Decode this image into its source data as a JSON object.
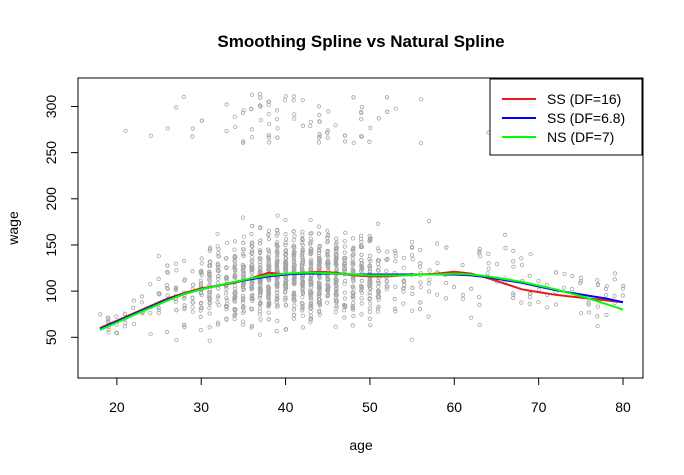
{
  "chart_data": {
    "type": "scatter",
    "title": "Smoothing Spline vs Natural Spline",
    "xlabel": "age",
    "ylabel": "wage",
    "xlim": [
      18,
      80
    ],
    "ylim": [
      20,
      320
    ],
    "x_ticks": [
      20,
      30,
      40,
      50,
      60,
      70,
      80
    ],
    "y_ticks": [
      50,
      100,
      150,
      200,
      250,
      300
    ],
    "grid": false,
    "legend_position": "top-right",
    "point_color": "#a6a6a6",
    "series": [
      {
        "name": "SS (DF=16)",
        "color": "#e41a1c",
        "x": [
          18,
          20,
          22,
          24,
          26,
          28,
          30,
          32,
          34,
          36,
          38,
          40,
          42,
          44,
          46,
          48,
          50,
          52,
          54,
          56,
          58,
          60,
          62,
          64,
          66,
          68,
          70,
          72,
          74,
          76,
          78,
          80
        ],
        "y": [
          60,
          68,
          76,
          84,
          92,
          98,
          103,
          106,
          109,
          114,
          120,
          118,
          120,
          121,
          120,
          117,
          116,
          116,
          117,
          118,
          119,
          121,
          119,
          114,
          108,
          102,
          99,
          96,
          94,
          92,
          90,
          88
        ]
      },
      {
        "name": "SS (DF=6.8)",
        "color": "#0000ff",
        "x": [
          18,
          20,
          22,
          24,
          26,
          28,
          30,
          32,
          34,
          36,
          38,
          40,
          42,
          44,
          46,
          48,
          50,
          52,
          54,
          56,
          58,
          60,
          62,
          64,
          66,
          68,
          70,
          72,
          74,
          76,
          78,
          80
        ],
        "y": [
          59,
          67,
          75,
          83,
          91,
          97,
          102,
          106,
          110,
          113,
          116,
          118,
          119,
          119,
          119,
          118,
          118,
          118,
          118,
          118,
          118,
          118,
          117,
          115,
          112,
          109,
          105,
          101,
          98,
          95,
          92,
          88
        ]
      },
      {
        "name": "NS (DF=7)",
        "color": "#00ff00",
        "x": [
          18,
          20,
          22,
          24,
          26,
          28,
          30,
          32,
          34,
          36,
          38,
          40,
          42,
          44,
          46,
          48,
          50,
          52,
          54,
          56,
          58,
          60,
          62,
          64,
          66,
          68,
          70,
          72,
          74,
          76,
          78,
          80
        ],
        "y": [
          58,
          66,
          74,
          82,
          90,
          97,
          102,
          106,
          110,
          114,
          117,
          119,
          120,
          120,
          119,
          118,
          117,
          117,
          117,
          118,
          118,
          119,
          118,
          116,
          113,
          110,
          106,
          102,
          97,
          92,
          86,
          80
        ]
      }
    ]
  }
}
